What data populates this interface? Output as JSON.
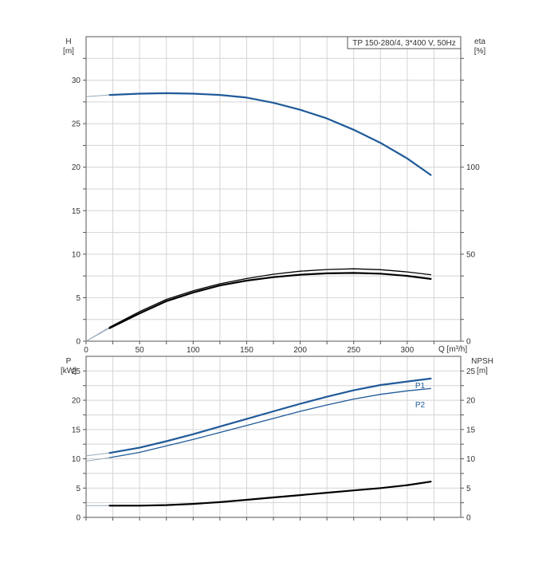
{
  "chart_data": [
    {
      "type": "line",
      "title": "TP 150-280/4, 3*400 V, 50Hz",
      "xlabel": "Q [m³/h]",
      "ylabel_left": [
        "H",
        "[m]"
      ],
      "ylabel_right": [
        "eta",
        "[%]"
      ],
      "xlim": [
        0,
        350
      ],
      "ylim": [
        0,
        35
      ],
      "y2lim": [
        0,
        175
      ],
      "x_ticks": [
        "0",
        "50",
        "100",
        "150",
        "200",
        "250",
        "300"
      ],
      "y_ticks": [
        "0",
        "5",
        "10",
        "15",
        "20",
        "25",
        "30"
      ],
      "y2_ticks": [
        "0",
        "50",
        "100"
      ],
      "grid": true,
      "colors": {
        "head": "#1f5a99",
        "efficiency": "#000000",
        "extension": "#9aa9bb"
      },
      "series": [
        {
          "key": "head",
          "axis": "left",
          "x": [
            0,
            22,
            50,
            75,
            100,
            125,
            150,
            175,
            200,
            225,
            250,
            275,
            300,
            322
          ],
          "y": [
            28.1,
            28.3,
            28.45,
            28.5,
            28.45,
            28.3,
            28.0,
            27.4,
            26.6,
            25.6,
            24.3,
            22.8,
            21.0,
            19.1
          ],
          "operating_from_x": 22
        },
        {
          "key": "efficiency_1",
          "axis": "right",
          "x": [
            0,
            22,
            50,
            75,
            100,
            125,
            150,
            175,
            200,
            225,
            250,
            275,
            300,
            322
          ],
          "y": [
            0,
            8,
            17,
            24,
            29,
            33,
            36,
            38.5,
            40.2,
            41.2,
            41.6,
            41.1,
            39.8,
            38.2
          ],
          "operating_from_x": 22
        },
        {
          "key": "efficiency_2",
          "axis": "right",
          "x": [
            0,
            22,
            50,
            75,
            100,
            125,
            150,
            175,
            200,
            225,
            250,
            275,
            300,
            322
          ],
          "y": [
            0,
            7.5,
            16,
            23,
            28,
            32,
            34.8,
            36.8,
            38.2,
            39.0,
            39.2,
            38.8,
            37.5,
            35.8
          ],
          "operating_from_x": 22
        }
      ]
    },
    {
      "type": "line",
      "xlim": [
        0,
        350
      ],
      "ylim": [
        0,
        27.5
      ],
      "ylabel_left": [
        "P",
        "[kW]"
      ],
      "ylabel_right": [
        "NPSH",
        "[m]"
      ],
      "y_ticks": [
        "0",
        "5",
        "10",
        "15",
        "20",
        "25"
      ],
      "y2_ticks": [
        "0",
        "5",
        "10",
        "15",
        "20",
        "25"
      ],
      "grid": true,
      "colors": {
        "power": "#1f5a99",
        "npsh": "#000000",
        "extension": "#9aa9bb"
      },
      "series": [
        {
          "key": "P1",
          "name": "P1",
          "axis": "left",
          "x": [
            0,
            22,
            50,
            75,
            100,
            125,
            150,
            175,
            200,
            225,
            250,
            275,
            300,
            322
          ],
          "y": [
            10.5,
            11.0,
            11.9,
            13.0,
            14.2,
            15.5,
            16.8,
            18.1,
            19.4,
            20.6,
            21.7,
            22.6,
            23.2,
            23.7
          ],
          "operating_from_x": 22
        },
        {
          "key": "P2",
          "name": "P2",
          "axis": "left",
          "x": [
            0,
            22,
            50,
            75,
            100,
            125,
            150,
            175,
            200,
            225,
            250,
            275,
            300,
            322
          ],
          "y": [
            9.6,
            10.2,
            11.1,
            12.2,
            13.3,
            14.5,
            15.7,
            16.9,
            18.1,
            19.2,
            20.2,
            21.0,
            21.6,
            22.0
          ],
          "operating_from_x": 22
        },
        {
          "key": "NPSH",
          "axis": "right",
          "x": [
            0,
            22,
            50,
            75,
            100,
            125,
            150,
            175,
            200,
            225,
            250,
            275,
            300,
            322
          ],
          "y": [
            2.0,
            2.0,
            2.0,
            2.1,
            2.3,
            2.6,
            3.0,
            3.4,
            3.8,
            4.2,
            4.6,
            5.0,
            5.5,
            6.1
          ],
          "operating_from_x": 22
        }
      ]
    }
  ]
}
